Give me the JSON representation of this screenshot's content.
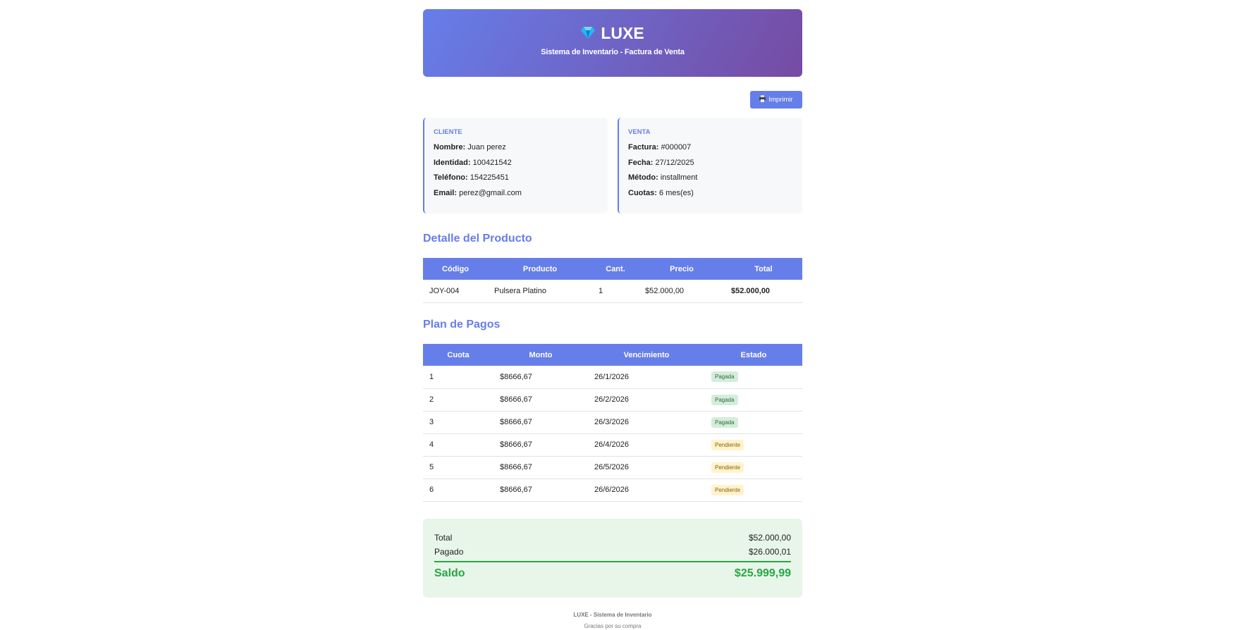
{
  "header": {
    "brand": "LUXE",
    "subtitle": "Sistema de Inventario - Factura de Venta",
    "icon": "gem-icon"
  },
  "print_button": {
    "label": "Imprimir",
    "icon": "printer-icon"
  },
  "cliente": {
    "title": "CLIENTE",
    "fields": [
      {
        "label": "Nombre:",
        "value": "Juan perez"
      },
      {
        "label": "Identidad:",
        "value": "100421542"
      },
      {
        "label": "Teléfono:",
        "value": "154225451"
      },
      {
        "label": "Email:",
        "value": "perez@gmail.com"
      }
    ]
  },
  "venta": {
    "title": "VENTA",
    "fields": [
      {
        "label": "Factura:",
        "value": "#000007"
      },
      {
        "label": "Fecha:",
        "value": "27/12/2025"
      },
      {
        "label": "Método:",
        "value": "installment"
      },
      {
        "label": "Cuotas:",
        "value": "6 mes(es)"
      }
    ]
  },
  "producto": {
    "title": "Detalle del Producto",
    "columns": [
      "Código",
      "Producto",
      "Cant.",
      "Precio",
      "Total"
    ],
    "rows": [
      [
        "JOY-004",
        "Pulsera Platino",
        "1",
        "$52.000,00",
        "$52.000,00"
      ]
    ]
  },
  "plan": {
    "title": "Plan de Pagos",
    "columns": [
      "Cuota",
      "Monto",
      "Vencimiento",
      "Estado"
    ],
    "rows": [
      [
        "1",
        "$8666,67",
        "26/1/2026",
        "Pagada"
      ],
      [
        "2",
        "$8666,67",
        "26/2/2026",
        "Pagada"
      ],
      [
        "3",
        "$8666,67",
        "26/3/2026",
        "Pagada"
      ],
      [
        "4",
        "$8666,67",
        "26/4/2026",
        "Pendiente"
      ],
      [
        "5",
        "$8666,67",
        "26/5/2026",
        "Pendiente"
      ],
      [
        "6",
        "$8666,67",
        "26/6/2026",
        "Pendiente"
      ]
    ]
  },
  "summary": {
    "total_label": "Total",
    "total": "$52.000,00",
    "pagado_label": "Pagado",
    "pagado": "$26.000,01",
    "saldo_label": "Saldo",
    "saldo": "$25.999,99"
  },
  "footer": {
    "line1": "LUXE - Sistema de Inventario",
    "line2": "Gracias por su compra"
  },
  "colors": {
    "accent": "#667eea",
    "gradient_end": "#764ba2",
    "success": "#28a745"
  }
}
